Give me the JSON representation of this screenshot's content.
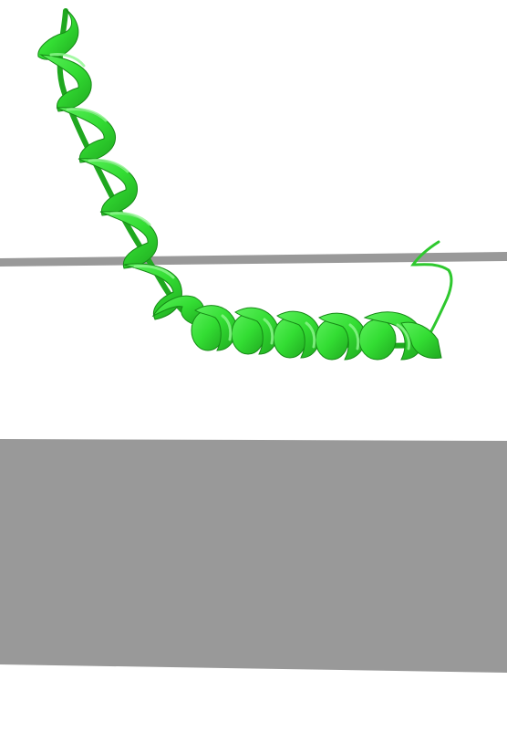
{
  "scene": {
    "subject": "protein-helix-cartoon",
    "colors": {
      "background": "#ffffff",
      "membrane": "#999999",
      "helix": "#33dd33",
      "helix_dark": "#1fa81f",
      "helix_light": "#5cf05c"
    }
  }
}
